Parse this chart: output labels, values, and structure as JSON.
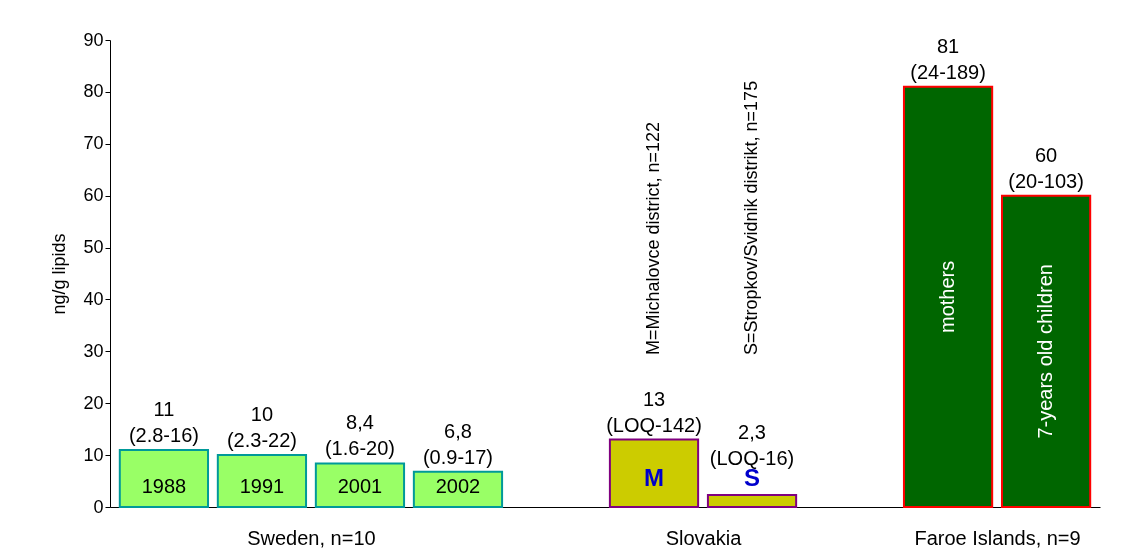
{
  "chart_data": {
    "type": "bar",
    "ylabel": "ng/g lipids",
    "categories": [
      "1988",
      "1991",
      "2001",
      "2002",
      null,
      "M",
      "S",
      null,
      "mothers",
      "7-years old children"
    ],
    "values": [
      11,
      10,
      8.4,
      6.8,
      null,
      13,
      2.3,
      null,
      81,
      60
    ],
    "colors": [
      "#99ff66",
      "#99ff66",
      "#99ff66",
      "#99ff66",
      null,
      "#cccc00",
      "#cccc00",
      null,
      "#006600",
      "#006600"
    ],
    "value_labels": [
      "11\n(2.8-16)",
      "10\n(2.3-22)",
      "8,4\n(1.6-20)",
      "6,8\n(0.9-17)",
      null,
      "13\n(LOQ-142)",
      "2,3\n(LOQ-16)",
      null,
      "81\n(24-189)",
      "60\n(20-103)"
    ],
    "ylim": [
      0,
      90
    ],
    "yticks": [
      0,
      10,
      20,
      30,
      40,
      50,
      60,
      70,
      80,
      90
    ],
    "grid": false,
    "annotations": [
      "Sweden, n=10",
      "Slovakia",
      "Faroe Islands, n=9",
      "M=Michalovce district, n=122",
      "S=Stropkov/Svidnik distrikt, n=175"
    ]
  }
}
